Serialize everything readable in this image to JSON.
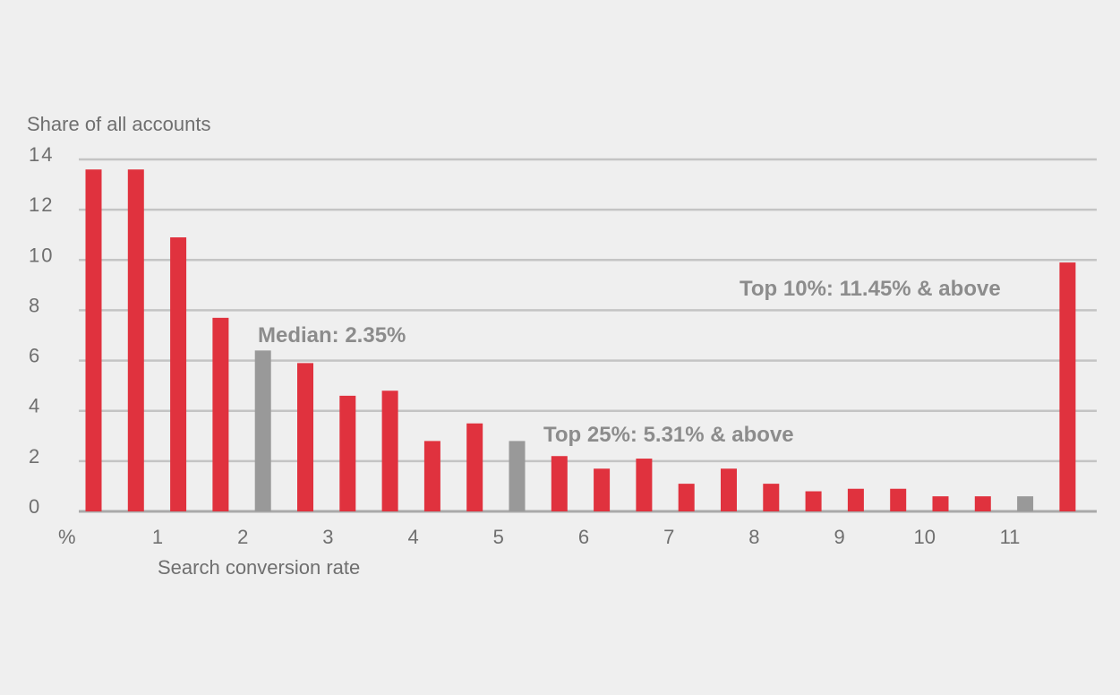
{
  "chart_data": {
    "type": "bar",
    "ylabel": "Share of all accounts",
    "xlabel": "Search conversion rate",
    "x_unit": "%",
    "ylim": [
      0,
      14
    ],
    "yticks": [
      0,
      2,
      4,
      6,
      8,
      10,
      12,
      14
    ],
    "xtick_labels": [
      "1",
      "2",
      "3",
      "4",
      "5",
      "6",
      "7",
      "8",
      "9",
      "10",
      "11"
    ],
    "grid": true,
    "bar_colors": {
      "default": "#e0323e",
      "highlight": "#999999"
    },
    "values": [
      13.6,
      13.6,
      10.9,
      7.7,
      6.4,
      5.9,
      4.6,
      4.8,
      2.8,
      3.5,
      2.8,
      2.2,
      1.7,
      2.1,
      1.1,
      1.7,
      1.1,
      0.8,
      0.9,
      0.9,
      0.6,
      0.6,
      0.6,
      9.9
    ],
    "highlighted_bars": [
      4,
      10,
      22
    ],
    "annotations": [
      {
        "text": "Median: 2.35%"
      },
      {
        "text": "Top 25%: 5.31% & above"
      },
      {
        "text": "Top 10%: 11.45% & above"
      }
    ]
  }
}
